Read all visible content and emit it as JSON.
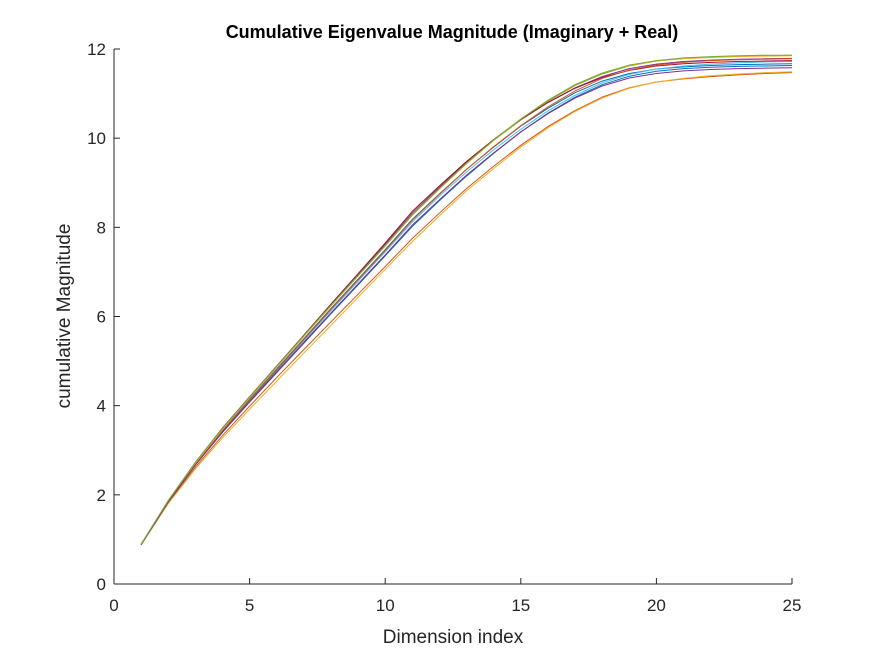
{
  "chart_data": {
    "type": "line",
    "title": "Cumulative Eigenvalue Magnitude (Imaginary + Real)",
    "xlabel": "Dimension index",
    "ylabel": "cumulative Magnitude",
    "xlim": [
      0,
      25
    ],
    "ylim": [
      0,
      12
    ],
    "xticks": [
      0,
      5,
      10,
      15,
      20,
      25
    ],
    "yticks": [
      0,
      2,
      4,
      6,
      8,
      10,
      12
    ],
    "grid": false,
    "legend": "none",
    "x": [
      1,
      2,
      3,
      4,
      5,
      6,
      7,
      8,
      9,
      10,
      11,
      12,
      13,
      14,
      15,
      16,
      17,
      18,
      19,
      20,
      21,
      22,
      23,
      24,
      25
    ],
    "series": [
      {
        "color": "#0072BD",
        "values": [
          0.88,
          1.85,
          2.7,
          3.45,
          4.14,
          4.82,
          5.5,
          6.18,
          6.84,
          7.5,
          8.18,
          8.75,
          9.3,
          9.8,
          10.27,
          10.67,
          11.02,
          11.28,
          11.45,
          11.55,
          11.6,
          11.63,
          11.65,
          11.66,
          11.67
        ]
      },
      {
        "color": "#D95319",
        "values": [
          0.88,
          1.82,
          2.62,
          3.33,
          3.99,
          4.63,
          5.26,
          5.88,
          6.5,
          7.12,
          7.75,
          8.32,
          8.87,
          9.37,
          9.84,
          10.26,
          10.62,
          10.92,
          11.13,
          11.26,
          11.33,
          11.38,
          11.42,
          11.45,
          11.47
        ]
      },
      {
        "color": "#EDB120",
        "values": [
          0.88,
          1.8,
          2.58,
          3.28,
          3.92,
          4.55,
          5.18,
          5.8,
          6.43,
          7.06,
          7.68,
          8.26,
          8.82,
          9.32,
          9.8,
          10.23,
          10.6,
          10.9,
          11.12,
          11.26,
          11.34,
          11.4,
          11.44,
          11.47,
          11.49
        ]
      },
      {
        "color": "#7E2F8E",
        "values": [
          0.89,
          1.87,
          2.73,
          3.5,
          4.2,
          4.89,
          5.58,
          6.27,
          6.94,
          7.62,
          8.32,
          8.9,
          9.46,
          9.96,
          10.41,
          10.8,
          11.13,
          11.38,
          11.56,
          11.66,
          11.72,
          11.75,
          11.77,
          11.78,
          11.79
        ]
      },
      {
        "color": "#77AC30",
        "values": [
          0.89,
          1.86,
          2.72,
          3.48,
          4.18,
          4.87,
          5.56,
          6.24,
          6.91,
          7.58,
          8.28,
          8.87,
          9.43,
          9.95,
          10.41,
          10.83,
          11.18,
          11.44,
          11.62,
          11.73,
          11.79,
          11.82,
          11.84,
          11.85,
          11.86
        ]
      },
      {
        "color": "#4DBEEE",
        "values": [
          0.88,
          1.84,
          2.68,
          3.42,
          4.11,
          4.79,
          5.46,
          6.13,
          6.79,
          7.45,
          8.12,
          8.7,
          9.24,
          9.74,
          10.2,
          10.61,
          10.96,
          11.24,
          11.43,
          11.55,
          11.62,
          11.66,
          11.69,
          11.71,
          11.72
        ]
      },
      {
        "color": "#A2142F",
        "values": [
          0.89,
          1.86,
          2.72,
          3.49,
          4.19,
          4.88,
          5.58,
          6.28,
          6.96,
          7.65,
          8.36,
          8.93,
          9.48,
          9.97,
          10.42,
          10.8,
          11.12,
          11.36,
          11.52,
          11.62,
          11.67,
          11.7,
          11.72,
          11.73,
          11.74
        ]
      },
      {
        "color": "#0072BD",
        "values": [
          0.88,
          1.84,
          2.67,
          3.4,
          4.08,
          4.74,
          5.4,
          6.06,
          6.71,
          7.36,
          8.02,
          8.6,
          9.15,
          9.66,
          10.14,
          10.56,
          10.92,
          11.2,
          11.39,
          11.5,
          11.56,
          11.59,
          11.61,
          11.62,
          11.63
        ]
      },
      {
        "color": "#D95319",
        "values": [
          0.88,
          1.85,
          2.69,
          3.43,
          4.12,
          4.8,
          5.48,
          6.16,
          6.82,
          7.48,
          8.16,
          8.74,
          9.3,
          9.81,
          10.28,
          10.7,
          11.06,
          11.34,
          11.53,
          11.64,
          11.7,
          11.74,
          11.76,
          11.77,
          11.78
        ]
      },
      {
        "color": "#EDB120",
        "values": [
          0.89,
          1.86,
          2.71,
          3.47,
          4.17,
          4.86,
          5.55,
          6.24,
          6.91,
          7.58,
          8.27,
          8.86,
          9.43,
          9.95,
          10.43,
          10.85,
          11.2,
          11.46,
          11.63,
          11.73,
          11.78,
          11.81,
          11.83,
          11.84,
          11.85
        ]
      },
      {
        "color": "#7E2F8E",
        "values": [
          0.88,
          1.84,
          2.67,
          3.41,
          4.09,
          4.76,
          5.42,
          6.08,
          6.73,
          7.38,
          8.05,
          8.62,
          9.17,
          9.67,
          10.14,
          10.55,
          10.9,
          11.17,
          11.35,
          11.45,
          11.51,
          11.54,
          11.56,
          11.57,
          11.58
        ]
      },
      {
        "color": "#77AC30",
        "values": [
          0.89,
          1.87,
          2.73,
          3.49,
          4.19,
          4.88,
          5.57,
          6.25,
          6.92,
          7.59,
          8.28,
          8.87,
          9.44,
          9.96,
          10.43,
          10.85,
          11.2,
          11.46,
          11.64,
          11.74,
          11.8,
          11.83,
          11.85,
          11.86,
          11.86
        ]
      }
    ]
  }
}
